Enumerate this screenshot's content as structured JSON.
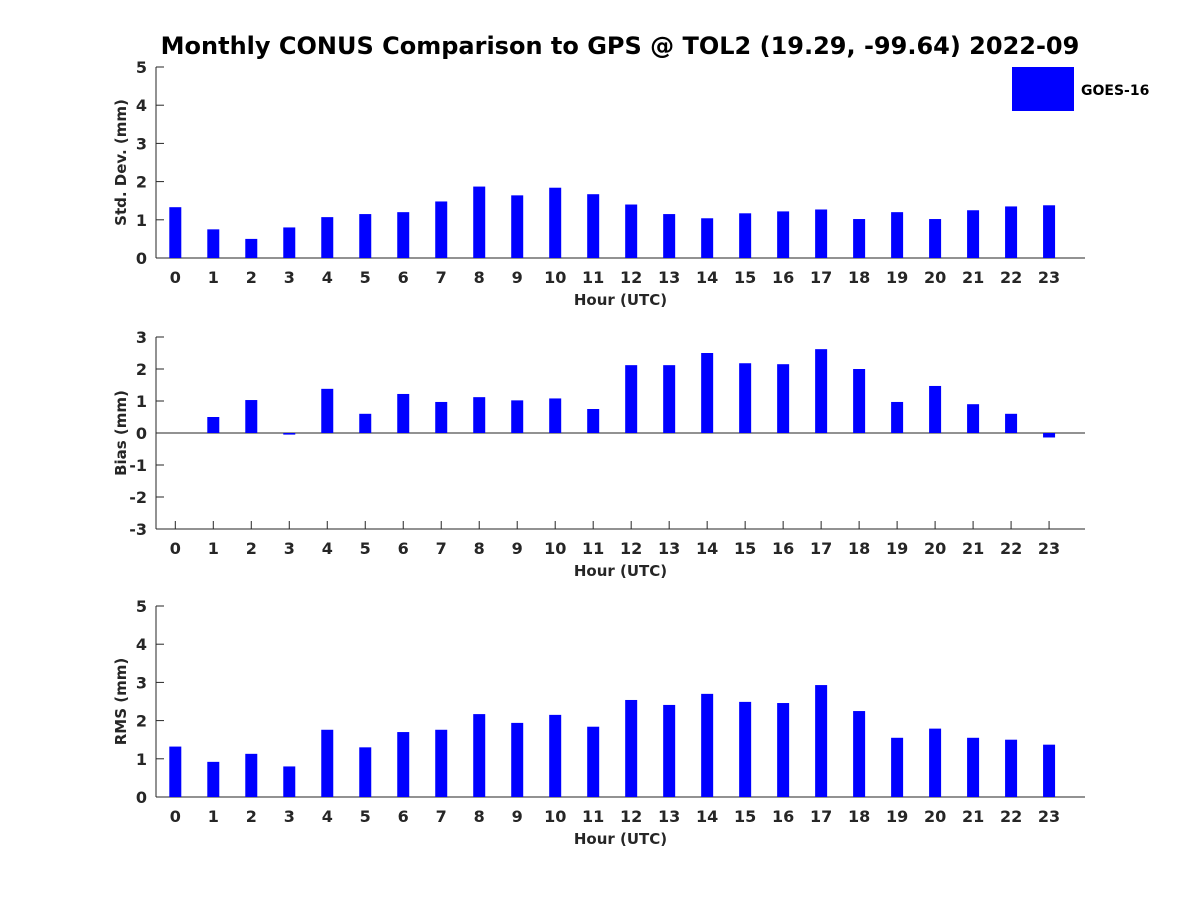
{
  "title": "Monthly CONUS Comparison to GPS @ TOL2 (19.29, -99.64) 2022-09",
  "legend": {
    "label": "GOES-16",
    "position": "top-right"
  },
  "colors": {
    "bar": "#0000ff",
    "axis": "#262626"
  },
  "chart_data": [
    {
      "type": "bar",
      "series": [
        {
          "name": "GOES-16",
          "values": [
            1.33,
            0.75,
            0.5,
            0.8,
            1.07,
            1.15,
            1.2,
            1.48,
            1.87,
            1.64,
            1.84,
            1.67,
            1.4,
            1.15,
            1.04,
            1.17,
            1.22,
            1.27,
            1.02,
            1.2,
            1.02,
            1.25,
            1.35,
            1.38
          ]
        }
      ],
      "categories": [
        "0",
        "1",
        "2",
        "3",
        "4",
        "5",
        "6",
        "7",
        "8",
        "9",
        "10",
        "11",
        "12",
        "13",
        "14",
        "15",
        "16",
        "17",
        "18",
        "19",
        "20",
        "21",
        "22",
        "23"
      ],
      "xlabel": "Hour (UTC)",
      "ylabel": "Std. Dev. (mm)",
      "ylim": [
        0,
        5
      ],
      "yticks": [
        "0",
        "1",
        "2",
        "3",
        "4",
        "5"
      ],
      "grid": false
    },
    {
      "type": "bar",
      "series": [
        {
          "name": "GOES-16",
          "values": [
            null,
            0.5,
            1.03,
            -0.05,
            1.38,
            0.6,
            1.22,
            0.97,
            1.12,
            1.02,
            1.08,
            0.75,
            2.12,
            2.12,
            2.5,
            2.18,
            2.15,
            2.62,
            2.0,
            0.97,
            1.47,
            0.9,
            0.6,
            -0.14
          ]
        }
      ],
      "categories": [
        "0",
        "1",
        "2",
        "3",
        "4",
        "5",
        "6",
        "7",
        "8",
        "9",
        "10",
        "11",
        "12",
        "13",
        "14",
        "15",
        "16",
        "17",
        "18",
        "19",
        "20",
        "21",
        "22",
        "23"
      ],
      "xlabel": "Hour (UTC)",
      "ylabel": "Bias (mm)",
      "ylim": [
        -3,
        3
      ],
      "yticks": [
        "-3",
        "-2",
        "-1",
        "0",
        "1",
        "2",
        "3"
      ],
      "grid": false
    },
    {
      "type": "bar",
      "series": [
        {
          "name": "GOES-16",
          "values": [
            1.32,
            0.92,
            1.13,
            0.8,
            1.76,
            1.3,
            1.7,
            1.76,
            2.17,
            1.94,
            2.15,
            1.84,
            2.54,
            2.41,
            2.7,
            2.49,
            2.46,
            2.93,
            2.25,
            1.55,
            1.79,
            1.55,
            1.5,
            1.37
          ]
        }
      ],
      "categories": [
        "0",
        "1",
        "2",
        "3",
        "4",
        "5",
        "6",
        "7",
        "8",
        "9",
        "10",
        "11",
        "12",
        "13",
        "14",
        "15",
        "16",
        "17",
        "18",
        "19",
        "20",
        "21",
        "22",
        "23"
      ],
      "xlabel": "Hour (UTC)",
      "ylabel": "RMS (mm)",
      "ylim": [
        0,
        5
      ],
      "yticks": [
        "0",
        "1",
        "2",
        "3",
        "4",
        "5"
      ],
      "grid": false
    }
  ]
}
